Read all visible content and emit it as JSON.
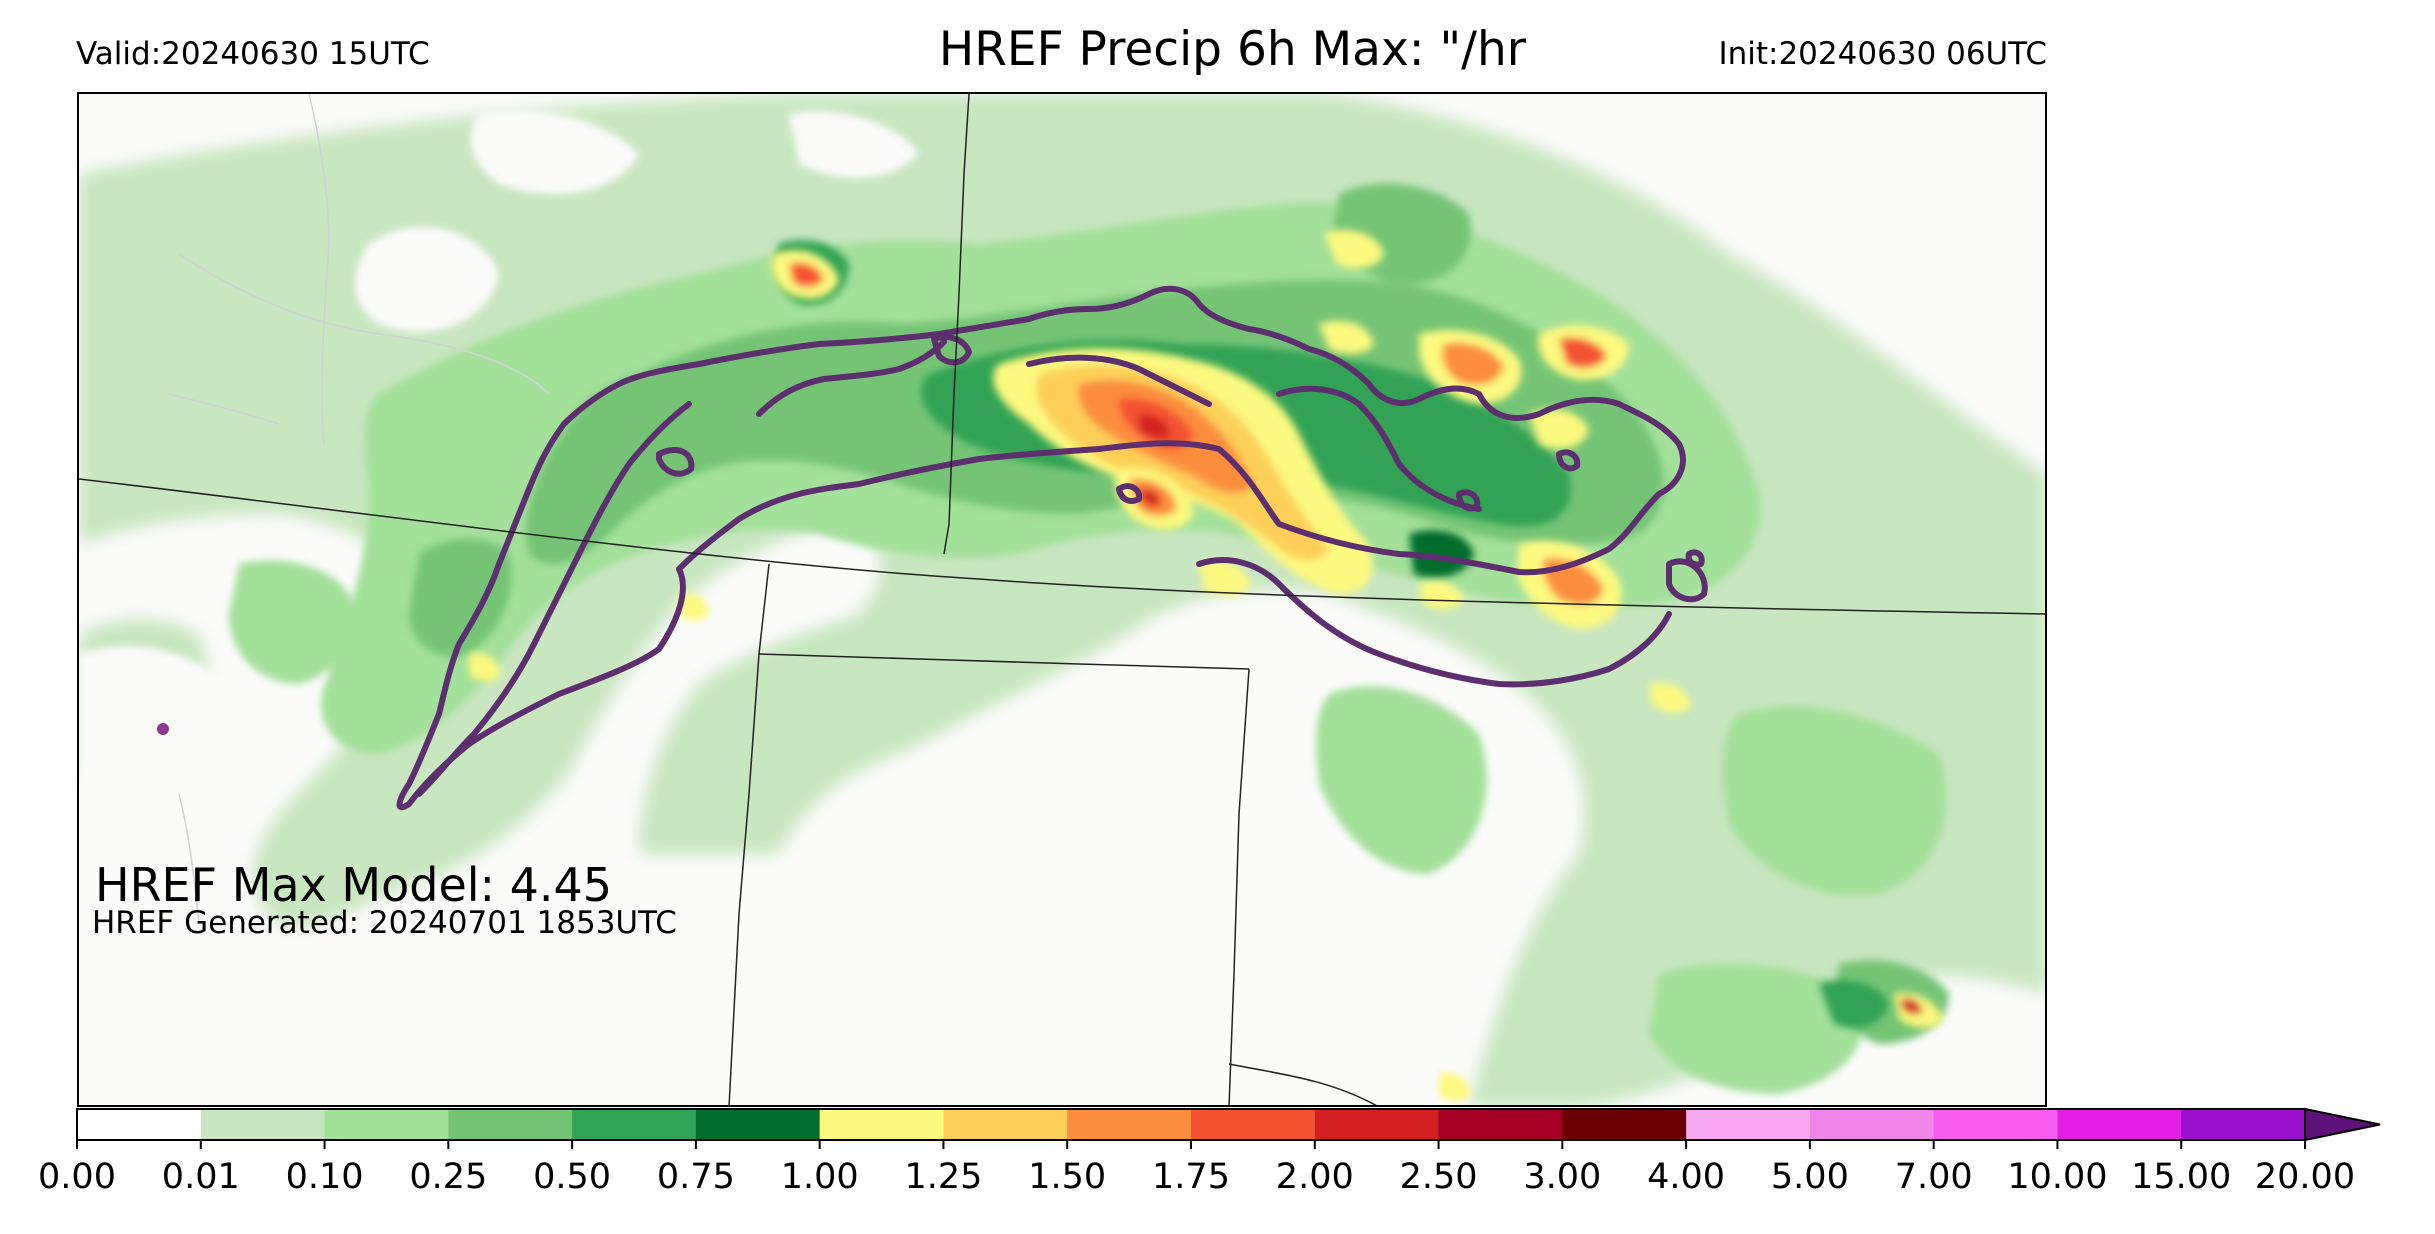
{
  "header": {
    "valid": "Valid:20240630 15UTC",
    "title": "HREF Precip 6h Max: \"/hr",
    "init": "Init:20240630 06UTC"
  },
  "annotations": {
    "max_model": "HREF Max Model: 4.45",
    "generated": "HREF Generated: 20240701 1853UTC"
  },
  "colorbar": {
    "ticks": [
      "0.00",
      "0.01",
      "0.10",
      "0.25",
      "0.50",
      "0.75",
      "1.00",
      "1.25",
      "1.50",
      "1.75",
      "2.00",
      "2.50",
      "3.00",
      "4.00",
      "5.00",
      "7.00",
      "10.00",
      "15.00",
      "20.00"
    ],
    "colors": [
      "#ffffff",
      "#c8e6c0",
      "#a3e09a",
      "#74c476",
      "#31a354",
      "#006d2c",
      "#fcf97f",
      "#fdcf58",
      "#fc8d3c",
      "#f45330",
      "#d42020",
      "#a50026",
      "#6b0000",
      "#f7a8ef",
      "#f084e8",
      "#f55cf0",
      "#e21ee0",
      "#9a0fce"
    ],
    "extend_color": "#5f117a"
  },
  "map_colors": {
    "background": "#fbfbfa",
    "ffg_contour": "#5e2f6e",
    "border": "#000000"
  }
}
